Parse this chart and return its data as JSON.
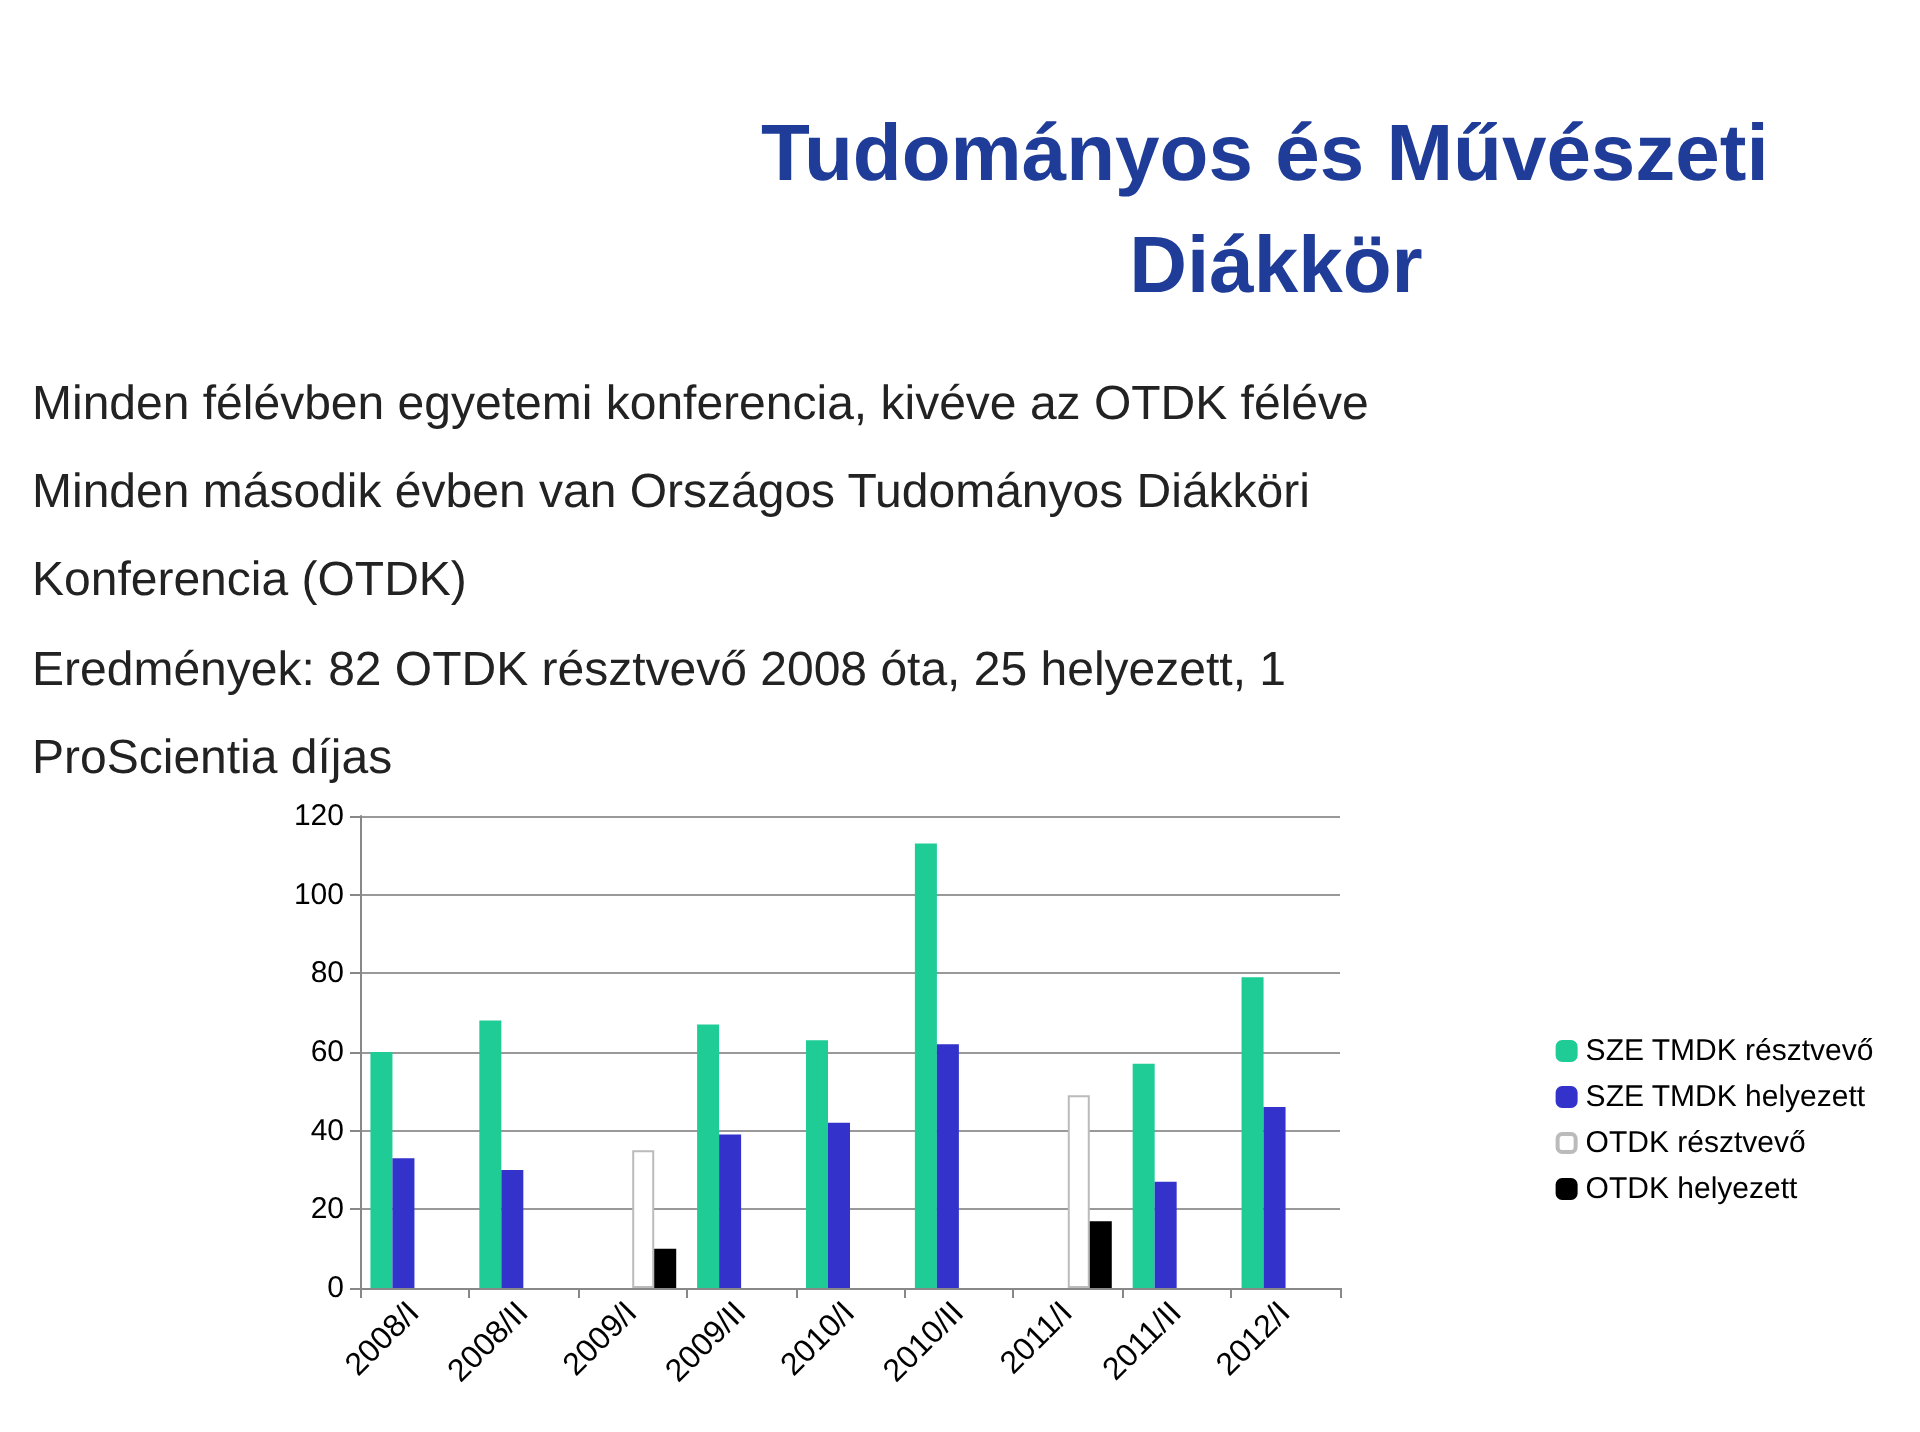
{
  "chart_data": {
    "type": "bar",
    "title": "Tudományos és Művészeti Diákkör",
    "annotations": [
      "Minden félévben egyetemi konferencia, kivéve az OTDK féléve",
      "Minden második évben van Országos Tudományos Diákköri Konferencia (OTDK)",
      "Eredmények: 82 OTDK résztvevő 2008 óta, 25 helyezett, 1 ProScientia díjas"
    ],
    "categories": [
      "2008/I",
      "2008/II",
      "2009/I",
      "2009/II",
      "2010/I",
      "2010/II",
      "2011/I",
      "2011/II",
      "2012/I"
    ],
    "series": [
      {
        "name": "SZE TMDK résztvevő",
        "color": "#1fcc96",
        "values": [
          60,
          68,
          null,
          67,
          63,
          113,
          null,
          57,
          79
        ]
      },
      {
        "name": "SZE TMDK helyezett",
        "color": "#3333cc",
        "values": [
          33,
          30,
          null,
          39,
          42,
          62,
          null,
          27,
          46
        ]
      },
      {
        "name": "OTDK résztvevő",
        "color": "#ffffff",
        "values": [
          null,
          null,
          35,
          null,
          null,
          null,
          49,
          null,
          null
        ]
      },
      {
        "name": "OTDK helyezett",
        "color": "#000000",
        "values": [
          null,
          null,
          10,
          null,
          null,
          null,
          17,
          null,
          null
        ]
      }
    ],
    "ylim": [
      0,
      120
    ],
    "yticks": [
      0,
      20,
      40,
      60,
      80,
      100,
      120
    ],
    "grid": "y",
    "legend": "right"
  }
}
